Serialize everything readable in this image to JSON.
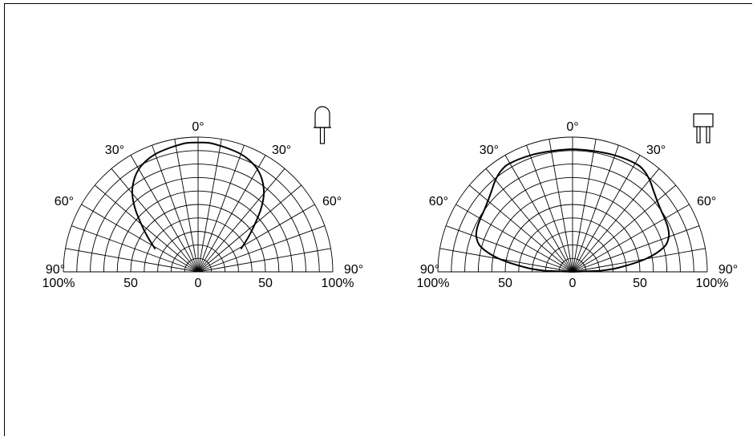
{
  "chart_data": [
    {
      "type": "polar",
      "description_label": "dome-lens-led",
      "icon": "dome-led-icon",
      "angle_labels": {
        "top": "0°",
        "left30": "30°",
        "right30": "30°",
        "left60": "60°",
        "right60": "60°",
        "left90": "90°",
        "right90": "90°"
      },
      "radial_labels": [
        "100%",
        "50",
        "0",
        "50",
        "100%"
      ],
      "r_range": [
        0,
        100
      ],
      "grid": {
        "rings": 10,
        "spoke_step_deg": 10
      },
      "series": [
        {
          "angles_deg": [
            -62,
            -55,
            -50,
            -45,
            -40,
            -35,
            -30,
            -25,
            -20,
            -15,
            -10,
            -5,
            0,
            5,
            10,
            15,
            20,
            25,
            30,
            35,
            40,
            45,
            50,
            55,
            62
          ],
          "values": [
            36,
            46,
            55,
            66,
            76,
            83,
            88,
            91,
            93,
            94,
            95,
            96,
            96,
            96,
            95,
            94,
            93,
            91,
            88,
            83,
            76,
            66,
            55,
            46,
            36
          ]
        }
      ]
    },
    {
      "type": "polar",
      "icon": "flat-led-icon",
      "angle_labels": {
        "top": "0°",
        "left30": "30°",
        "right30": "30°",
        "left60": "60°",
        "right60": "60°",
        "left90": "90°",
        "right90": "90°"
      },
      "radial_labels": [
        "100%",
        "50",
        "0",
        "50",
        "100%"
      ],
      "r_range": [
        0,
        100
      ],
      "grid": {
        "rings": 10,
        "spoke_step_deg": 10
      },
      "series": [
        {
          "angles_deg": [
            -88,
            -85,
            -80,
            -75,
            -70,
            -65,
            -60,
            -55,
            -50,
            -45,
            -40,
            -35,
            -30,
            -20,
            -10,
            0,
            10,
            20,
            30,
            35,
            40,
            45,
            50,
            55,
            60,
            65,
            70,
            75,
            80,
            85,
            88
          ],
          "values": [
            20,
            34,
            55,
            70,
            76,
            78,
            79,
            80,
            82,
            85,
            89,
            92,
            93,
            92,
            91,
            91,
            91,
            92,
            93,
            92,
            89,
            85,
            82,
            80,
            79,
            78,
            76,
            70,
            55,
            34,
            20
          ]
        }
      ]
    }
  ]
}
